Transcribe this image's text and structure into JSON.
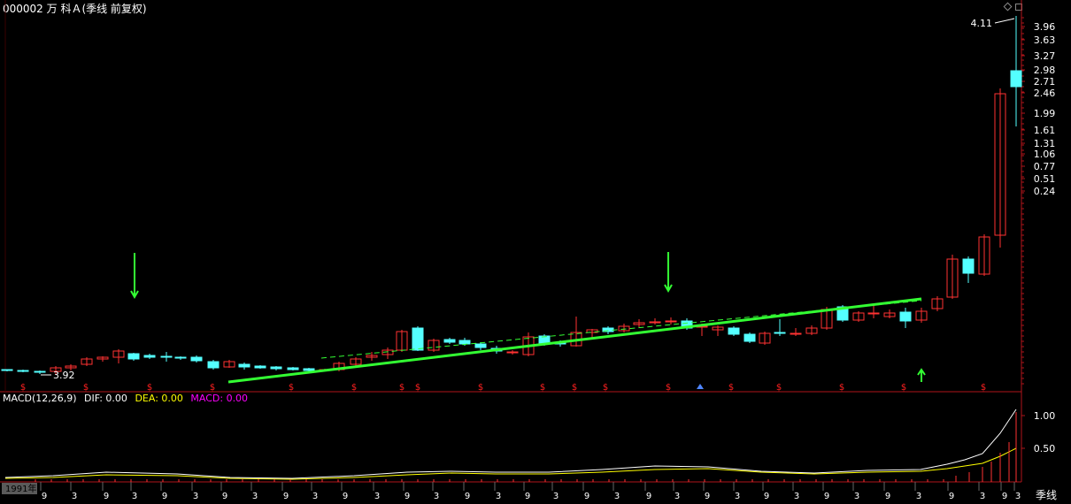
{
  "header": {
    "title": "000002 万 科Ａ(季线 前复权)"
  },
  "price_axis": {
    "labels": [
      "3.96",
      "3.63",
      "3.27",
      "2.98",
      "2.71",
      "2.46",
      "1.99",
      "1.61",
      "1.31",
      "1.06",
      "0.77",
      "0.51",
      "0.24"
    ]
  },
  "annotations": {
    "high_label": "4.11",
    "low_label": "3.92"
  },
  "macd": {
    "name": "MACD(12,26,9)",
    "dif": "DIF: 0.00",
    "dea": "DEA: 0.00",
    "macd": "MACD: 0.00",
    "axis_labels": [
      "1.00",
      "0.50"
    ]
  },
  "time_axis": {
    "year_label": "1991年",
    "month_labels": [
      "9",
      "3",
      "9",
      "3",
      "9",
      "3",
      "9",
      "3",
      "9",
      "3",
      "9",
      "3",
      "9",
      "3",
      "9",
      "3",
      "9",
      "3",
      "9",
      "3",
      "9",
      "3",
      "9",
      "3",
      "9",
      "3",
      "9",
      "3",
      "9",
      "3",
      "9",
      "3",
      "9",
      "3"
    ]
  },
  "period_tab": "季线",
  "colors": {
    "up": "#ff3232",
    "down": "#54ffff",
    "trend": "#33ff33",
    "axis": "#b0151a",
    "dif": "#ffffff",
    "dea": "#ffff00",
    "macd": "#ff00ff"
  },
  "icons": {
    "dividend_marker": "$",
    "signal_arrow_down": "green-down-arrow-icon",
    "signal_arrow_up": "green-up-arrow-icon"
  }
}
